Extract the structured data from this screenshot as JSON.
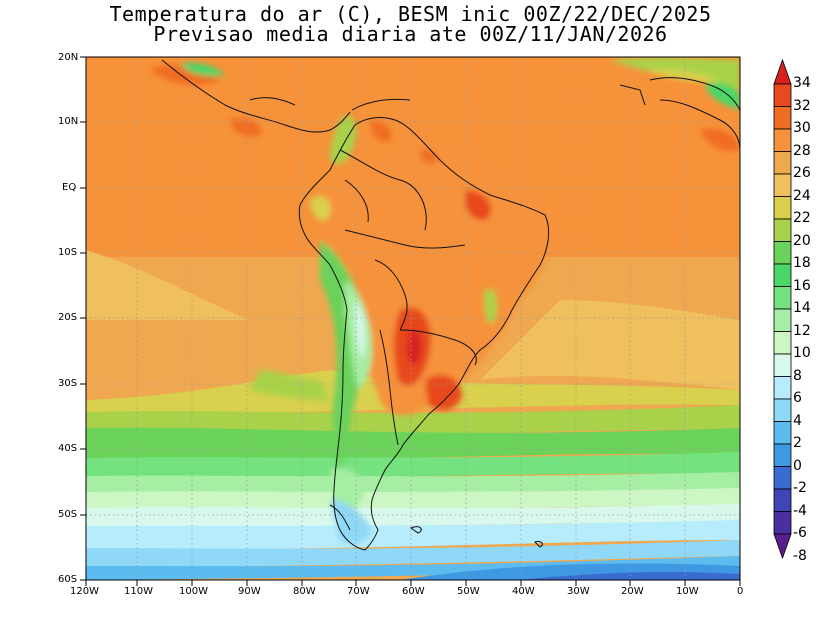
{
  "title_line1": "Temperatura do ar (C), BESM inic 00Z/22/DEC/2025",
  "title_line2": "Previsao media diaria ate 00Z/11/JAN/2026",
  "lat_labels": [
    "20N",
    "10N",
    "EQ",
    "10S",
    "20S",
    "30S",
    "40S",
    "50S",
    "60S"
  ],
  "lon_labels": [
    "120W",
    "110W",
    "100W",
    "90W",
    "80W",
    "70W",
    "60W",
    "50W",
    "40W",
    "30W",
    "20W",
    "10W",
    "0"
  ],
  "colorbar": {
    "labels": [
      "34",
      "32",
      "30",
      "28",
      "26",
      "24",
      "22",
      "20",
      "18",
      "16",
      "14",
      "12",
      "10",
      "8",
      "6",
      "4",
      "2",
      "0",
      "-2",
      "-4",
      "-6",
      "-8"
    ],
    "colors": [
      "#d92020",
      "#e84a1e",
      "#f06d24",
      "#f6923a",
      "#efa84f",
      "#f0bf5e",
      "#d9d04e",
      "#a9d24a",
      "#6bd25a",
      "#4ad768",
      "#74e37f",
      "#a6eea3",
      "#ccf7c4",
      "#d8f8ec",
      "#b6ecfb",
      "#8fd8f7",
      "#5cbcef",
      "#3f98e2",
      "#3a6cd0",
      "#3d46b4",
      "#4b2fa0",
      "#5a1d8c"
    ]
  },
  "map_extent": {
    "lon_min": -120,
    "lon_max": 0,
    "lat_min": -60,
    "lat_max": 20
  }
}
